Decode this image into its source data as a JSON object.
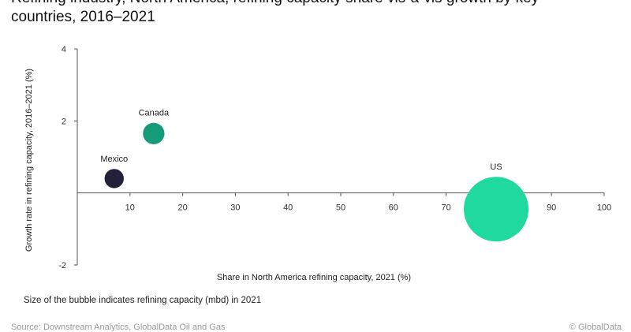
{
  "title_lines": [
    "Refining industry, North America, refining capacity share vis-a-vis growth by key",
    "countries, 2016–2021"
  ],
  "note": "Size of the bubble indicates refining capacity (mbd) in 2021",
  "source": "Source: Downstream Analytics, GlobalData Oil and Gas",
  "copyright": "© GlobalData",
  "colors": {
    "axis": "#555555",
    "background": "#ffffff"
  },
  "chart_data": {
    "type": "scatter",
    "subtype": "bubble",
    "xlabel": "Share in North America refining capacity, 2021 (%)",
    "ylabel": "Growth rate in refining capacity, 2016–2021 (%)",
    "xlim": [
      0,
      100
    ],
    "ylim": [
      -2,
      4
    ],
    "x_ticks": [
      10,
      20,
      30,
      40,
      50,
      60,
      70,
      80,
      90,
      100
    ],
    "y_ticks": [
      -2,
      2,
      4
    ],
    "grid": false,
    "size_legend": "Size of the bubble indicates refining capacity (mbd) in 2021",
    "points": [
      {
        "label": "Mexico",
        "x": 7,
        "y": 0.4,
        "size": 1.6,
        "color": "#23213a"
      },
      {
        "label": "Canada",
        "x": 14.5,
        "y": 1.65,
        "size": 2.0,
        "color": "#159a7a"
      },
      {
        "label": "US",
        "x": 79.5,
        "y": -0.45,
        "size": 18.1,
        "color": "#1fd99e"
      }
    ]
  }
}
